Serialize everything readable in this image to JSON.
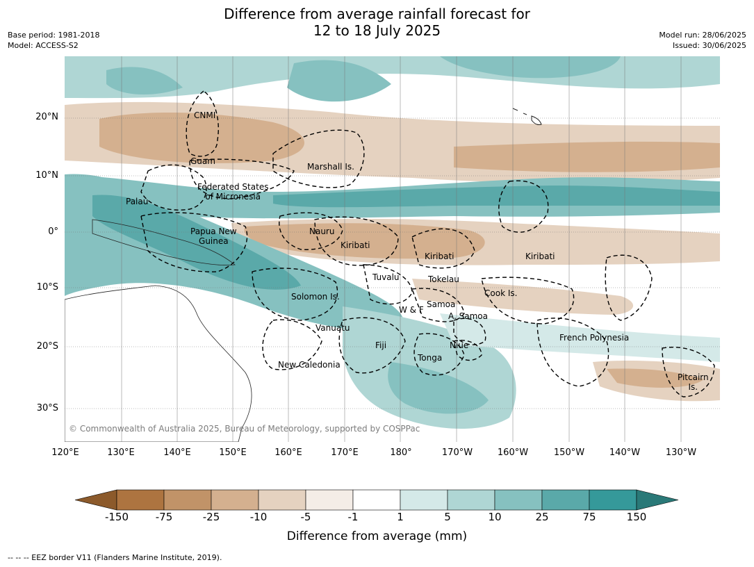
{
  "title_line1": "Difference from average rainfall forecast for",
  "title_line2": "12 to 18 July 2025",
  "meta_left": [
    "Base period: 1981-2018",
    "Model: ACCESS-S2"
  ],
  "meta_right": [
    "Model run: 28/06/2025",
    "Issued: 30/06/2025"
  ],
  "lat_labels": [
    "20°N",
    "10°N",
    "0°",
    "10°S",
    "20°S",
    "30°S"
  ],
  "lon_labels": [
    "120°E",
    "130°E",
    "140°E",
    "150°E",
    "160°E",
    "170°E",
    "180°",
    "170°W",
    "160°W",
    "150°W",
    "140°W",
    "130°W"
  ],
  "places": [
    "CNMI",
    "Guam",
    "Marshall Is.",
    "Federated States\nof Micronesia",
    "Palau",
    "Papua New\nGuinea",
    "Nauru",
    "Kiribati",
    "Kiribati",
    "Kiribati",
    "Tuvalu",
    "Tokelau",
    "Cook Is.",
    "Solomon Is.",
    "W & F",
    "Samoa",
    "A. Samoa",
    "Vanuatu",
    "Fiji",
    "Niue",
    "Tonga",
    "French Polynesia",
    "New Caledonia",
    "Pitcairn\nIs."
  ],
  "copyright": "© Commonwealth of Australia 2025, Bureau of Meteorology, supported by COSPPac",
  "colorbar": {
    "ticks": [
      "-150",
      "-75",
      "-25",
      "-10",
      "-5",
      "-1",
      "1",
      "5",
      "10",
      "25",
      "75",
      "150"
    ],
    "colors": [
      "#8c5a2b",
      "#ad7440",
      "#c19368",
      "#d4b08f",
      "#e5d2c0",
      "#f4ede7",
      "#ffffff",
      "#d4e9e8",
      "#afd6d4",
      "#86c1c0",
      "#5aa9a9",
      "#35999a",
      "#2a7978"
    ],
    "label": "Difference from average (mm)"
  },
  "footer": "--  --  -- EEZ border V11 (Flanders Marine Institute, 2019)."
}
